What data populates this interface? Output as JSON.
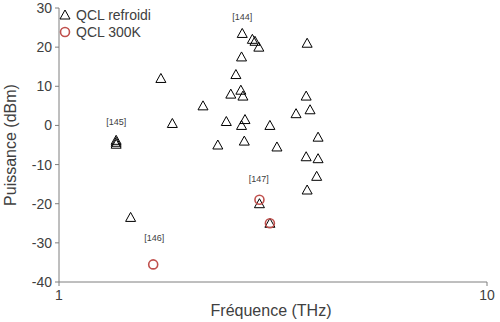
{
  "chart_data": {
    "type": "scatter",
    "x_label": "Fréquence (THz)",
    "y_label": "Puissance (dBm)",
    "log": "x",
    "xlim": [
      1,
      10
    ],
    "xticks": [
      1,
      10
    ],
    "ylim": [
      -40,
      30
    ],
    "yticks": [
      -40,
      -30,
      -20,
      -10,
      0,
      10,
      20,
      30
    ],
    "legend": "upper-left",
    "series": [
      {
        "name": "QCL refroidi",
        "color": "#000000",
        "marker": "triangle",
        "x": [
          1.36,
          1.36,
          1.36,
          1.47,
          1.73,
          1.84,
          2.17,
          2.35,
          2.46,
          2.52,
          2.59,
          2.68,
          2.67,
          2.66,
          2.69,
          2.67,
          2.72,
          2.71,
          2.83,
          2.87,
          2.93,
          2.94,
          3.11,
          3.23,
          3.58,
          3.78,
          3.86,
          3.8,
          3.78,
          3.8,
          4.03,
          4.03,
          4.0,
          3.11
        ],
        "values": [
          -3.8,
          -4.3,
          -4.8,
          -23.5,
          12,
          0.5,
          5,
          -5,
          1,
          8,
          13,
          23.5,
          17.5,
          9,
          7.5,
          0,
          1.5,
          -4,
          22,
          21.5,
          20,
          -20,
          0,
          -5.5,
          3,
          7.5,
          4,
          21,
          -8,
          -16.5,
          -3,
          -8.5,
          -13,
          -25
        ]
      },
      {
        "name": "QCL 300K",
        "color": "#c0504d",
        "marker": "circle",
        "x": [
          1.66,
          2.94,
          3.11
        ],
        "values": [
          -35.5,
          -19,
          -25
        ]
      }
    ],
    "annotations": [
      {
        "text": "[144]",
        "x": 2.68,
        "y": 27
      },
      {
        "text": "[145]",
        "x": 1.36,
        "y": 0
      },
      {
        "text": "[146]",
        "x": 1.67,
        "y": -29.5
      },
      {
        "text": "[147]",
        "x": 2.93,
        "y": -14.5
      }
    ]
  }
}
